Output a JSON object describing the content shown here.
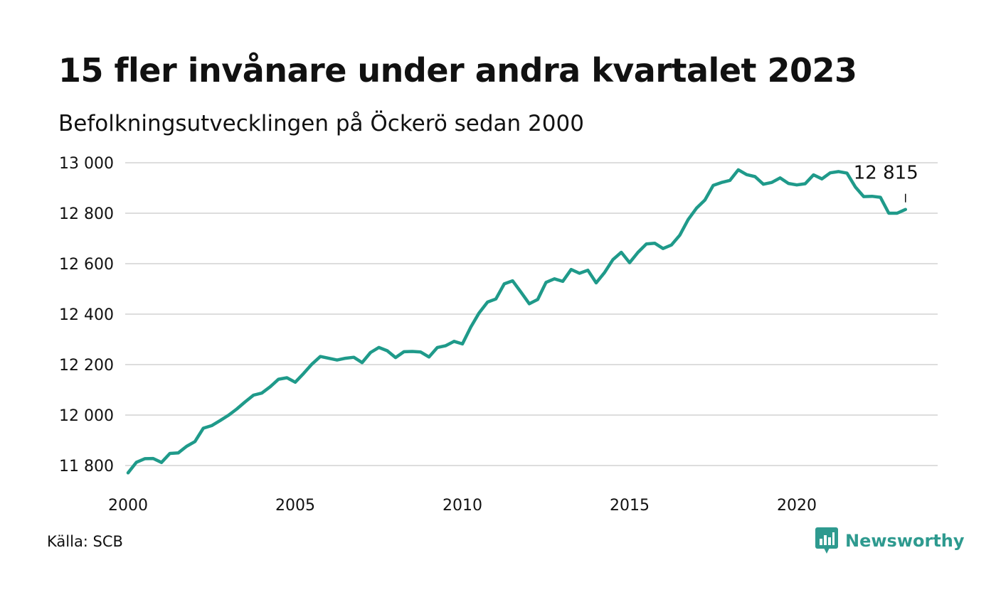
{
  "header": {
    "title": "15 fler invånare under andra kvartalet 2023",
    "subtitle": "Befolkningsutvecklingen på Öckerö sedan 2000"
  },
  "footer": {
    "source": "Källa: SCB",
    "brand": "Newsworthy",
    "brand_icon": "bar-chart-speech-bubble-icon"
  },
  "colors": {
    "line": "#1f9a8a",
    "grid": "#dddddd",
    "brand": "#2e9a8f",
    "text": "#111111"
  },
  "chart_data": {
    "type": "line",
    "x_start": 2000.0,
    "x_step": 0.25,
    "xlim": [
      2000,
      2024.5
    ],
    "ylim": [
      11780,
      13000
    ],
    "xticks": [
      2000,
      2005,
      2010,
      2015,
      2020
    ],
    "xtick_labels": [
      "2000",
      "2005",
      "2010",
      "2015",
      "2020"
    ],
    "yticks": [
      11800,
      12000,
      12200,
      12400,
      12600,
      12800,
      13000
    ],
    "ytick_labels": [
      "11 800",
      "12 000",
      "12 200",
      "12 400",
      "12 600",
      "12 800",
      "13 000"
    ],
    "grid": true,
    "series": [
      {
        "values": [
          11771,
          11813,
          11827,
          11828,
          11812,
          11848,
          11850,
          11876,
          11895,
          11948,
          11958,
          11978,
          11999,
          12024,
          12052,
          12079,
          12087,
          12112,
          12142,
          12148,
          12130,
          12165,
          12202,
          12232,
          12225,
          12218,
          12225,
          12229,
          12208,
          12248,
          12268,
          12255,
          12228,
          12251,
          12252,
          12250,
          12230,
          12268,
          12275,
          12292,
          12282,
          12349,
          12405,
          12448,
          12460,
          12520,
          12532,
          12487,
          12441,
          12458,
          12526,
          12540,
          12530,
          12577,
          12562,
          12574,
          12524,
          12565,
          12616,
          12645,
          12604,
          12645,
          12678,
          12681,
          12660,
          12674,
          12713,
          12775,
          12820,
          12852,
          12910,
          12922,
          12930,
          12972,
          12953,
          12945,
          12915,
          12922,
          12940,
          12918,
          12912,
          12917,
          12952,
          12936,
          12960,
          12965,
          12959,
          12904,
          12866,
          12867,
          12863,
          12800,
          12800,
          12815
        ]
      }
    ],
    "annotation": {
      "label": "12 815",
      "value": 12815
    }
  }
}
